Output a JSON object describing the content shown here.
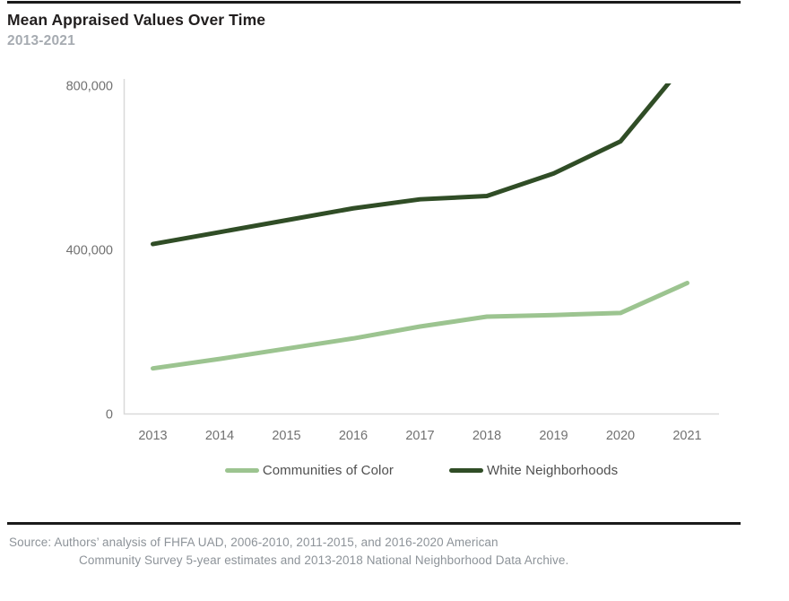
{
  "header": {
    "title": "Mean Appraised Values Over Time",
    "subtitle": "2013-2021"
  },
  "chart_data": {
    "type": "line",
    "x": [
      "2013",
      "2014",
      "2015",
      "2016",
      "2017",
      "2018",
      "2019",
      "2020",
      "2021"
    ],
    "series": [
      {
        "name": "Communities of Color",
        "color": "#9cc490",
        "values": [
          110000,
          133000,
          158000,
          183000,
          212000,
          236000,
          240000,
          245000,
          318000
        ]
      },
      {
        "name": "White Neighborhoods",
        "color": "#304d26",
        "values": [
          413000,
          442000,
          471000,
          500000,
          522000,
          530000,
          585000,
          663000,
          860000
        ]
      }
    ],
    "title": "Mean Appraised Values Over Time",
    "subtitle": "2013-2021",
    "xlabel": "",
    "ylabel": "",
    "ylim": [
      0,
      800000
    ],
    "yticks": [
      0,
      400000,
      800000
    ],
    "ytick_labels": [
      "0",
      "400,000",
      "800,000"
    ],
    "grid": false,
    "legend_position": "bottom",
    "note": "White Neighborhoods line is clipped at the 800,000 axis maximum in 2021"
  },
  "legend": [
    {
      "label": "Communities of Color",
      "color": "#9cc490"
    },
    {
      "label": "White Neighborhoods",
      "color": "#304d26"
    }
  ],
  "source": {
    "prefix": "Source:",
    "line1": "Authors’ analysis of FHFA UAD, 2006-2010, 2011-2015, and 2016-2020 American",
    "line2": "Community Survey 5-year estimates and 2013-2018 National Neighborhood Data Archive."
  },
  "colors": {
    "rule": "#1b1b1b",
    "axis": "#d9d9d9",
    "tick_text": "#717171",
    "subtitle_text": "#a6abb1",
    "legend_text": "#4f4f4f",
    "source_text": "#8d9399"
  }
}
